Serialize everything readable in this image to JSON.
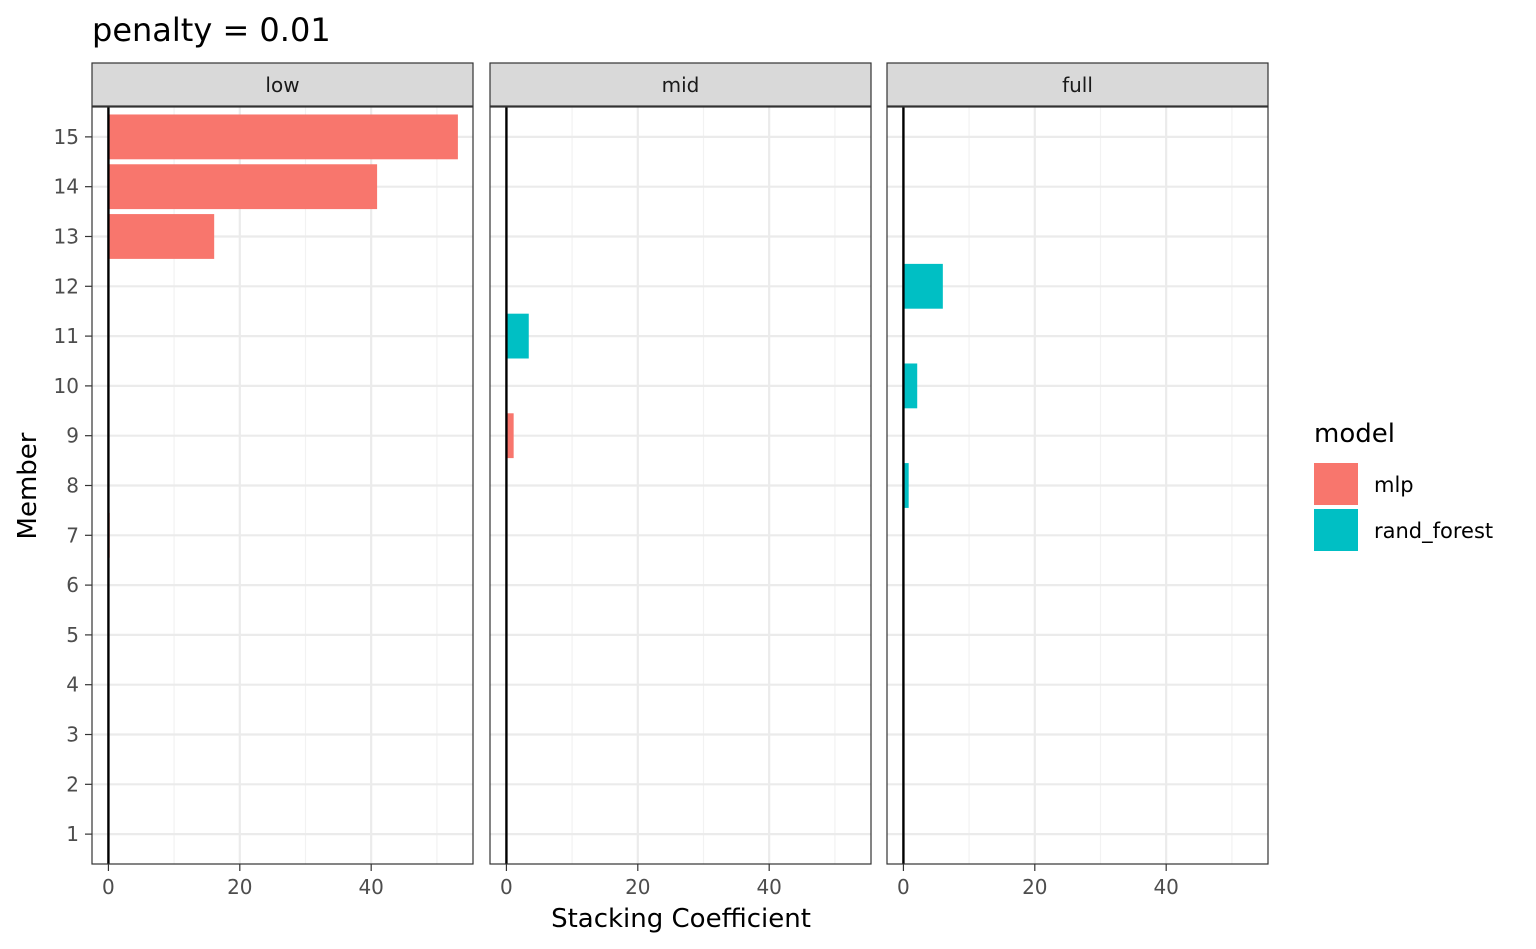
{
  "chart_data": {
    "type": "bar",
    "orientation": "horizontal",
    "title": "penalty = 0.01",
    "xlabel": "Stacking Coefficient",
    "ylabel": "Member",
    "xlim": [
      -2.5,
      55.5
    ],
    "xticks": [
      0,
      20,
      40
    ],
    "ylim": [
      0.4,
      15.6
    ],
    "yticks": [
      1,
      2,
      3,
      4,
      5,
      6,
      7,
      8,
      9,
      10,
      11,
      12,
      13,
      14,
      15
    ],
    "grid": true,
    "legend": {
      "title": "model",
      "position": "right",
      "entries": [
        {
          "label": "mlp",
          "color": "#F8766D"
        },
        {
          "label": "rand_forest",
          "color": "#00BFC4"
        }
      ]
    },
    "panels": [
      {
        "label": "low",
        "bars": [
          {
            "member": 15,
            "value": 53.2,
            "model": "mlp"
          },
          {
            "member": 14,
            "value": 40.9,
            "model": "mlp"
          },
          {
            "member": 13,
            "value": 16.1,
            "model": "mlp"
          },
          {
            "member": 7,
            "value": 0.2,
            "model": "mlp"
          }
        ]
      },
      {
        "label": "mid",
        "bars": [
          {
            "member": 11,
            "value": 3.4,
            "model": "rand_forest"
          },
          {
            "member": 9,
            "value": 1.1,
            "model": "mlp"
          }
        ]
      },
      {
        "label": "full",
        "bars": [
          {
            "member": 12,
            "value": 6.0,
            "model": "rand_forest"
          },
          {
            "member": 10,
            "value": 2.1,
            "model": "rand_forest"
          },
          {
            "member": 8,
            "value": 0.8,
            "model": "rand_forest"
          }
        ]
      }
    ],
    "colors": {
      "mlp": "#F8766D",
      "rand_forest": "#00BFC4",
      "strip_background": "#D9D9D9",
      "grid_major": "#EBEBEB",
      "grid_minor": "#F2F2F2",
      "zero_line": "#000000"
    }
  }
}
